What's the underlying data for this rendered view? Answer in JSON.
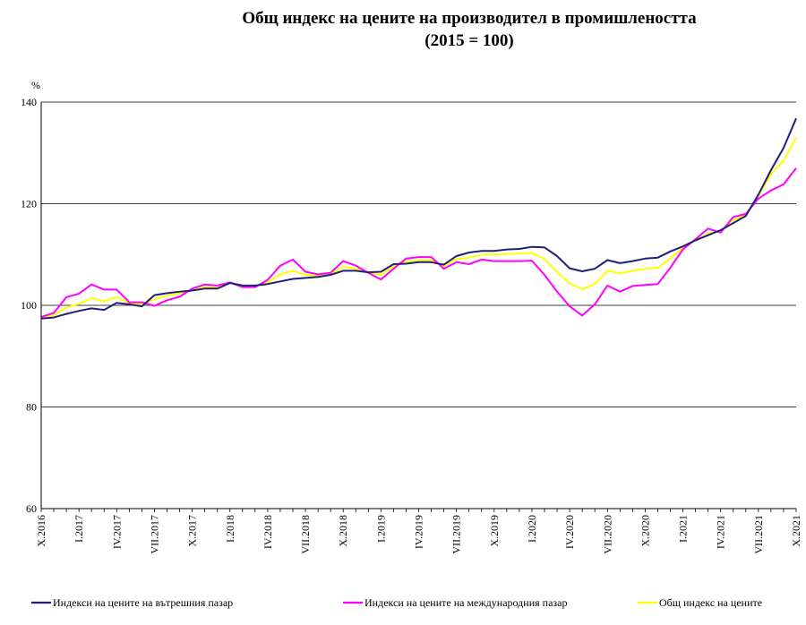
{
  "chart_data": {
    "type": "line",
    "title": "Общ индекс на цените на производител в промишлеността",
    "subtitle": "(2015 = 100)",
    "ylabel": "%",
    "ylim": [
      60,
      140
    ],
    "yticks": [
      60,
      80,
      100,
      120,
      140
    ],
    "grid": "horizontal",
    "legend_position": "bottom",
    "x": [
      "X.2016",
      "XI.2016",
      "XII.2016",
      "I.2017",
      "II.2017",
      "III.2017",
      "IV.2017",
      "V.2017",
      "VI.2017",
      "VII.2017",
      "VIII.2017",
      "IX.2017",
      "X.2017",
      "XI.2017",
      "XII.2017",
      "I.2018",
      "II.2018",
      "III.2018",
      "IV.2018",
      "V.2018",
      "VI.2018",
      "VII.2018",
      "VIII.2018",
      "IX.2018",
      "X.2018",
      "XI.2018",
      "XII.2018",
      "I.2019",
      "II.2019",
      "III.2019",
      "IV.2019",
      "V.2019",
      "VI.2019",
      "VII.2019",
      "VIII.2019",
      "IX.2019",
      "X.2019",
      "XI.2019",
      "XII.2019",
      "I.2020",
      "II.2020",
      "III.2020",
      "IV.2020",
      "V.2020",
      "VI.2020",
      "VII.2020",
      "VIII.2020",
      "IX.2020",
      "X.2020",
      "XI.2020",
      "XII.2020",
      "I.2021",
      "II.2021",
      "III.2021",
      "IV.2021",
      "V.2021",
      "VI.2021",
      "VII.2021",
      "VIII.2021",
      "IX.2021",
      "X.2021"
    ],
    "xtick_labels": [
      "X.2016",
      "I.2017",
      "IV.2017",
      "VII.2017",
      "X.2017",
      "I.2018",
      "IV.2018",
      "VII.2018",
      "X.2018",
      "I.2019",
      "IV.2019",
      "VII.2019",
      "X.2019",
      "I.2020",
      "IV.2020",
      "VII.2020",
      "X.2020",
      "I.2021",
      "IV.2021",
      "VII.2021",
      "X.2021"
    ],
    "series": [
      {
        "name": "Индекси на цените на вътрешния пазар",
        "color": "#1f1f7a",
        "values": [
          97.4,
          97.6,
          98.3,
          98.9,
          99.4,
          99.1,
          100.5,
          100.2,
          99.8,
          102.0,
          102.4,
          102.7,
          102.9,
          103.3,
          103.3,
          104.4,
          103.9,
          103.9,
          104.2,
          104.7,
          105.2,
          105.4,
          105.6,
          106.0,
          106.8,
          106.8,
          106.5,
          106.6,
          108.1,
          108.2,
          108.5,
          108.5,
          108.0,
          109.7,
          110.4,
          110.7,
          110.7,
          111.0,
          111.1,
          111.5,
          111.4,
          109.7,
          107.3,
          106.7,
          107.2,
          108.9,
          108.3,
          108.7,
          109.2,
          109.4,
          110.6,
          111.6,
          112.8,
          113.8,
          114.8,
          116.2,
          117.6,
          121.8,
          126.6,
          131.0,
          136.8
        ]
      },
      {
        "name": "Индекси на цените на международния пазар",
        "color": "#ff00ff",
        "values": [
          97.7,
          98.5,
          101.6,
          102.3,
          104.1,
          103.1,
          103.1,
          100.6,
          100.6,
          99.9,
          101.0,
          101.7,
          103.3,
          104.1,
          103.9,
          104.5,
          103.6,
          103.6,
          105.0,
          107.8,
          109.0,
          106.6,
          106.1,
          106.4,
          108.7,
          107.8,
          106.4,
          105.1,
          107.2,
          109.2,
          109.5,
          109.5,
          107.2,
          108.5,
          108.1,
          109.0,
          108.7,
          108.7,
          108.7,
          108.8,
          106.0,
          102.7,
          99.8,
          98.0,
          100.2,
          103.9,
          102.7,
          103.8,
          104.0,
          104.2,
          107.4,
          111.0,
          113.0,
          115.1,
          114.3,
          117.4,
          118.0,
          121.0,
          122.6,
          123.8,
          127.0
        ]
      },
      {
        "name": "Общ индекс на цените",
        "color": "#ffff00",
        "values": [
          97.5,
          98.0,
          99.6,
          100.3,
          101.4,
          100.8,
          101.6,
          100.4,
          100.2,
          101.2,
          101.9,
          102.3,
          103.0,
          103.6,
          103.6,
          104.4,
          103.8,
          103.8,
          104.5,
          106.1,
          106.8,
          106.0,
          105.8,
          106.2,
          107.6,
          107.2,
          106.5,
          106.0,
          107.7,
          108.6,
          108.9,
          108.9,
          107.7,
          109.1,
          109.4,
          110.0,
          110.0,
          110.1,
          110.2,
          110.3,
          109.1,
          106.6,
          104.3,
          103.2,
          104.2,
          106.8,
          106.3,
          106.8,
          107.2,
          107.4,
          109.2,
          111.3,
          112.8,
          114.1,
          114.7,
          116.8,
          117.8,
          121.6,
          125.8,
          128.5,
          133.0
        ]
      }
    ]
  }
}
